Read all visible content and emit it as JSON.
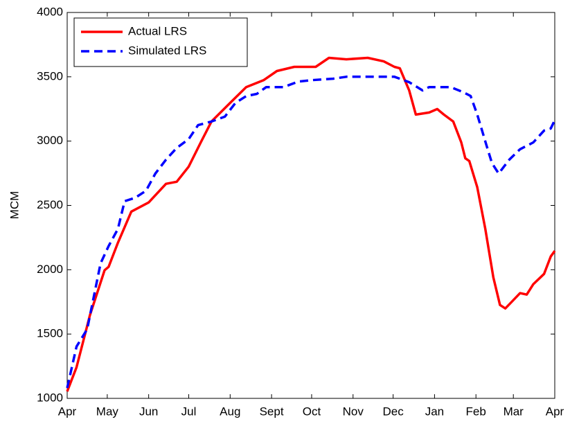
{
  "chart_data": {
    "type": "line",
    "y_label": "MCM",
    "xlim": [
      0,
      365
    ],
    "xticks": [
      {
        "value": 0,
        "label": "Apr"
      },
      {
        "value": 30,
        "label": "May"
      },
      {
        "value": 61,
        "label": "Jun"
      },
      {
        "value": 91,
        "label": "Jul"
      },
      {
        "value": 122,
        "label": "Aug"
      },
      {
        "value": 153,
        "label": "Sept"
      },
      {
        "value": 183,
        "label": "Oct"
      },
      {
        "value": 214,
        "label": "Nov"
      },
      {
        "value": 244,
        "label": "Dec"
      },
      {
        "value": 275,
        "label": "Jan"
      },
      {
        "value": 306,
        "label": "Feb"
      },
      {
        "value": 334,
        "label": "Mar"
      },
      {
        "value": 365,
        "label": "Apr"
      }
    ],
    "ylim": [
      1000,
      4000
    ],
    "yticks": [
      1000,
      1500,
      2000,
      2500,
      3000,
      3500,
      4000
    ],
    "legend": "top-left",
    "series": [
      {
        "name": "Actual LRS",
        "color": "#ff0000",
        "dash": "solid",
        "x": [
          0,
          7,
          17,
          28,
          31,
          38,
          48,
          61,
          74,
          82,
          91,
          100,
          108,
          122,
          134,
          147,
          157,
          170,
          186,
          196,
          209,
          225,
          237,
          245,
          249,
          256,
          261,
          271,
          277,
          282,
          289,
          295,
          298,
          301,
          307,
          313,
          319,
          324,
          328,
          333,
          339,
          344,
          349,
          357,
          362,
          365
        ],
        "values": [
          1054,
          1242,
          1646,
          1996,
          2022,
          2210,
          2452,
          2523,
          2668,
          2684,
          2802,
          2990,
          3152,
          3297,
          3420,
          3473,
          3545,
          3577,
          3577,
          3647,
          3636,
          3647,
          3620,
          3577,
          3566,
          3394,
          3206,
          3222,
          3249,
          3206,
          3152,
          2990,
          2867,
          2845,
          2641,
          2318,
          1941,
          1726,
          1699,
          1753,
          1818,
          1807,
          1888,
          1968,
          2103,
          2146
        ]
      },
      {
        "name": "Simulated LRS",
        "color": "#0000ff",
        "dash": "dashed",
        "x": [
          0,
          7,
          15,
          25,
          31,
          38,
          43,
          51,
          59,
          66,
          74,
          82,
          91,
          98,
          108,
          118,
          126,
          134,
          142,
          149,
          162,
          173,
          183,
          199,
          209,
          245,
          256,
          266,
          271,
          287,
          297,
          302,
          307,
          314,
          318,
          323,
          331,
          339,
          349,
          357,
          362,
          365
        ],
        "values": [
          1081,
          1403,
          1538,
          2049,
          2184,
          2318,
          2533,
          2560,
          2614,
          2748,
          2856,
          2947,
          3016,
          3124,
          3152,
          3190,
          3297,
          3350,
          3367,
          3420,
          3420,
          3463,
          3474,
          3485,
          3500,
          3500,
          3458,
          3394,
          3420,
          3420,
          3378,
          3351,
          3206,
          2964,
          2829,
          2748,
          2856,
          2937,
          2990,
          3082,
          3098,
          3163
        ]
      }
    ]
  }
}
